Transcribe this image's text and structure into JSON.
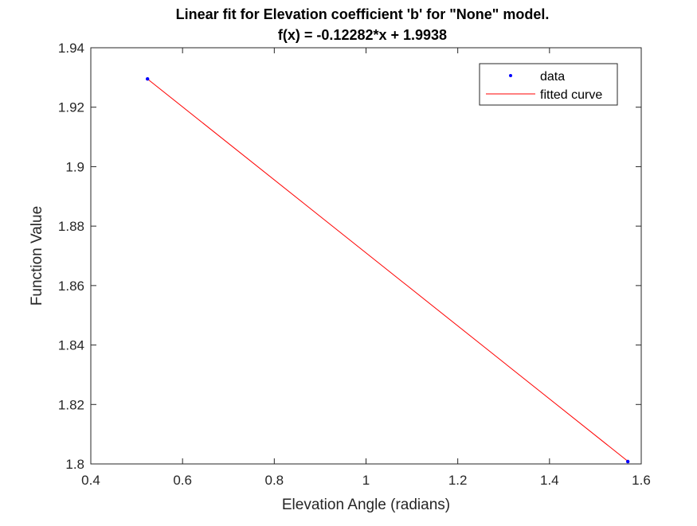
{
  "chart_data": {
    "type": "line",
    "title_line1": "Linear fit for Elevation coefficient 'b' for \"None\" model.",
    "title_line2": "f(x) = -0.12282*x + 1.9938",
    "xlabel": "Elevation Angle (radians)",
    "ylabel": "Function Value",
    "xlim": [
      0.4,
      1.6
    ],
    "ylim": [
      1.8,
      1.94
    ],
    "xticks": [
      0.4,
      0.6,
      0.8,
      1,
      1.2,
      1.4,
      1.6
    ],
    "xtick_labels": [
      "0.4",
      "0.6",
      "0.8",
      "1",
      "1.2",
      "1.4",
      "1.6"
    ],
    "yticks": [
      1.8,
      1.82,
      1.84,
      1.86,
      1.88,
      1.9,
      1.92,
      1.94
    ],
    "ytick_labels": [
      "1.8",
      "1.82",
      "1.84",
      "1.86",
      "1.88",
      "1.9",
      "1.92",
      "1.94"
    ],
    "grid": false,
    "legend_position": "top-right",
    "series": [
      {
        "name": "data",
        "style": "markers",
        "color": "#0000ff",
        "x": [
          0.5236,
          1.5708
        ],
        "y": [
          1.9295,
          1.8008
        ]
      },
      {
        "name": "fitted curve",
        "style": "line",
        "color": "#ff0000",
        "x": [
          0.5236,
          1.5708
        ],
        "y": [
          1.9295,
          1.8009
        ]
      }
    ]
  }
}
